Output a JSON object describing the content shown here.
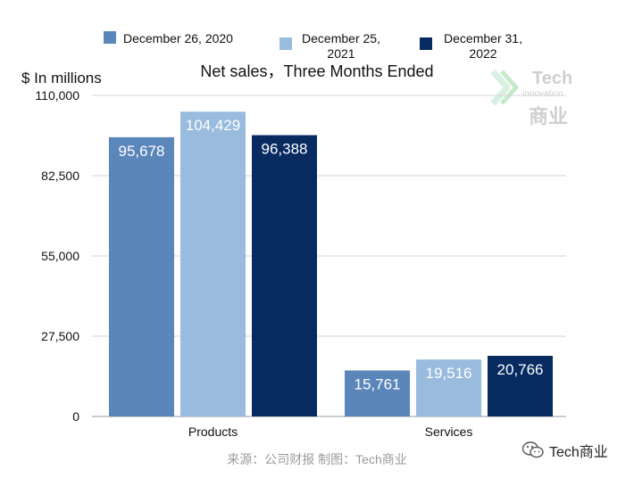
{
  "chart_data": {
    "type": "bar",
    "title": "Net sales，Three Months Ended",
    "ylabel": "$ In millions",
    "xlabel": "",
    "categories": [
      "Products",
      "Services"
    ],
    "series": [
      {
        "name": "December 26, 2020",
        "color": "#5b86ba",
        "values": [
          95678,
          15761
        ],
        "labels": [
          "95,678",
          "15,761"
        ]
      },
      {
        "name": "December 25, 2021",
        "color": "#99bbdd",
        "values": [
          104429,
          19516
        ],
        "labels": [
          "104,429",
          "19,516"
        ]
      },
      {
        "name": "December 31, 2022",
        "color": "#072b61",
        "values": [
          96388,
          20766
        ],
        "labels": [
          "96,388",
          "20,766"
        ]
      }
    ],
    "ylim": [
      0,
      110000
    ],
    "yticks": [
      0,
      27500,
      55000,
      82500,
      110000
    ],
    "ytick_labels": [
      "0",
      "27,500",
      "55,000",
      "82,500",
      "110,000"
    ],
    "grid": true,
    "legend_position": "top"
  },
  "legend": {
    "label_0": "December 26, 2020",
    "label_1": "December 25, 2021",
    "label_2": "December 31, 2022"
  },
  "source_text": "来源：公司财报 制图：Tech商业",
  "watermark": {
    "text": "Tech",
    "sub": "innovation",
    "cn": "商业"
  },
  "brand_text": "Tech商业"
}
